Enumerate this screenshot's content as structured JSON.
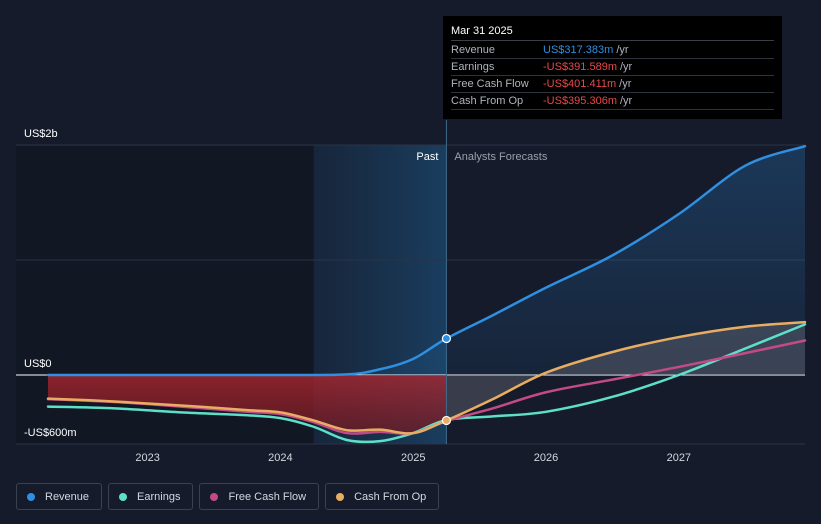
{
  "tooltip": {
    "date": "Mar 31 2025",
    "rows": [
      {
        "name": "Revenue",
        "value": "US$317.383m",
        "unit": "/yr",
        "positive": true
      },
      {
        "name": "Earnings",
        "value": "-US$391.589m",
        "unit": "/yr",
        "positive": false
      },
      {
        "name": "Free Cash Flow",
        "value": "-US$401.411m",
        "unit": "/yr",
        "positive": false
      },
      {
        "name": "Cash From Op",
        "value": "-US$395.306m",
        "unit": "/yr",
        "positive": false
      }
    ]
  },
  "periods": {
    "past": "Past",
    "forecast": "Analysts Forecasts"
  },
  "legend": [
    {
      "name": "Revenue",
      "color": "#2f8fe0"
    },
    {
      "name": "Earnings",
      "color": "#5ee0c8"
    },
    {
      "name": "Free Cash Flow",
      "color": "#c44a86"
    },
    {
      "name": "Cash From Op",
      "color": "#e9ad62"
    }
  ],
  "chart_data": {
    "type": "line",
    "y_unit": "US$m",
    "ylim": [
      -600,
      2000
    ],
    "y_tick_labels": [
      {
        "value": 2000,
        "label": "US$2b"
      },
      {
        "value": 0,
        "label": "US$0"
      },
      {
        "value": -600,
        "label": "-US$600m"
      }
    ],
    "x_tick_labels": [
      "2023",
      "2024",
      "2025",
      "2026",
      "2027"
    ],
    "xlim": [
      2022.25,
      2027.95
    ],
    "past_start": 2024.25,
    "forecast_start": 2025.25,
    "highlight_x": 2025.25,
    "series": [
      {
        "name": "Revenue",
        "color": "#2f8fe0",
        "points": [
          [
            2022.25,
            0
          ],
          [
            2023.0,
            0
          ],
          [
            2024.0,
            0
          ],
          [
            2024.5,
            5
          ],
          [
            2024.75,
            50
          ],
          [
            2025.0,
            140
          ],
          [
            2025.25,
            317.383
          ],
          [
            2025.6,
            520
          ],
          [
            2026.0,
            760
          ],
          [
            2026.5,
            1040
          ],
          [
            2027.0,
            1400
          ],
          [
            2027.5,
            1820
          ],
          [
            2027.95,
            1990
          ]
        ]
      },
      {
        "name": "Earnings",
        "color": "#5ee0c8",
        "points": [
          [
            2022.25,
            -275
          ],
          [
            2022.75,
            -290
          ],
          [
            2023.25,
            -325
          ],
          [
            2023.75,
            -350
          ],
          [
            2024.0,
            -375
          ],
          [
            2024.25,
            -450
          ],
          [
            2024.5,
            -565
          ],
          [
            2024.75,
            -575
          ],
          [
            2025.0,
            -505
          ],
          [
            2025.25,
            -391.589
          ],
          [
            2025.6,
            -360
          ],
          [
            2026.0,
            -320
          ],
          [
            2026.5,
            -190
          ],
          [
            2027.0,
            0
          ],
          [
            2027.5,
            230
          ],
          [
            2027.95,
            440
          ]
        ]
      },
      {
        "name": "Free Cash Flow",
        "color": "#c44a86",
        "points": [
          [
            2022.25,
            -210
          ],
          [
            2022.75,
            -235
          ],
          [
            2023.25,
            -275
          ],
          [
            2023.75,
            -320
          ],
          [
            2024.0,
            -340
          ],
          [
            2024.25,
            -410
          ],
          [
            2024.5,
            -505
          ],
          [
            2024.75,
            -495
          ],
          [
            2025.0,
            -505
          ],
          [
            2025.25,
            -401.411
          ],
          [
            2025.6,
            -290
          ],
          [
            2026.0,
            -150
          ],
          [
            2026.5,
            -40
          ],
          [
            2027.0,
            70
          ],
          [
            2027.5,
            190
          ],
          [
            2027.95,
            300
          ]
        ]
      },
      {
        "name": "Cash From Op",
        "color": "#e9ad62",
        "points": [
          [
            2022.25,
            -205
          ],
          [
            2022.75,
            -230
          ],
          [
            2023.25,
            -265
          ],
          [
            2023.75,
            -305
          ],
          [
            2024.0,
            -325
          ],
          [
            2024.25,
            -395
          ],
          [
            2024.5,
            -480
          ],
          [
            2024.75,
            -475
          ],
          [
            2025.0,
            -505
          ],
          [
            2025.25,
            -395.306
          ],
          [
            2025.6,
            -210
          ],
          [
            2026.0,
            20
          ],
          [
            2026.5,
            200
          ],
          [
            2027.0,
            330
          ],
          [
            2027.5,
            420
          ],
          [
            2027.95,
            460
          ]
        ]
      }
    ]
  }
}
